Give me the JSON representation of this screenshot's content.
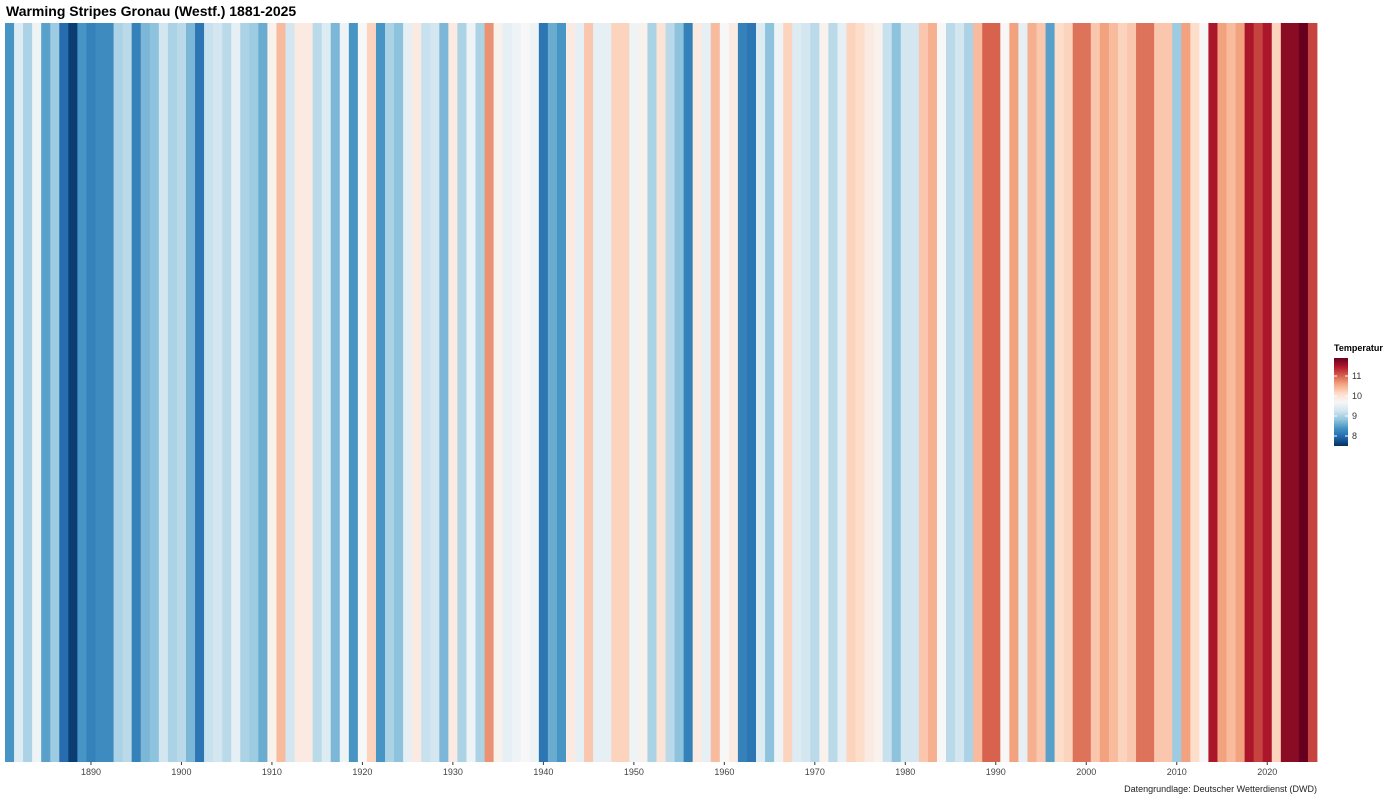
{
  "chart_data": {
    "type": "heatmap",
    "title": "Warming Stripes Gronau (Westf.) 1881-2025",
    "caption": "Datengrundlage: Deutscher Wetterdienst (DWD)",
    "legend_title": "Temperatur",
    "legend_ticks": [
      8,
      9,
      10,
      11
    ],
    "legend_placement": "right",
    "color_scale": "RdBu (blue = cold, red = warm)",
    "color_range": [
      7.5,
      11.9
    ],
    "palette": [
      "#053061",
      "#2166ac",
      "#4393c3",
      "#92c5de",
      "#d1e5f0",
      "#f7f7f7",
      "#fddbc7",
      "#f4a582",
      "#d6604d",
      "#b2182b",
      "#67001f"
    ],
    "x_ticks": [
      1890,
      1900,
      1910,
      1920,
      1930,
      1940,
      1950,
      1960,
      1970,
      1980,
      1990,
      2000,
      2010,
      2020
    ],
    "x_range": [
      1881,
      2025
    ],
    "grid": false,
    "years_start": 1881,
    "values": [
      8.4,
      9.4,
      9.0,
      9.6,
      8.5,
      8.9,
      8.0,
      7.6,
      8.4,
      8.2,
      8.3,
      8.3,
      9.0,
      9.1,
      8.2,
      8.7,
      8.8,
      9.3,
      9.0,
      9.1,
      8.7,
      8.1,
      9.2,
      9.3,
      9.1,
      9.5,
      9.0,
      8.9,
      8.6,
      9.8,
      10.4,
      9.3,
      9.9,
      9.9,
      9.1,
      9.4,
      8.7,
      9.6,
      8.4,
      9.7,
      10.2,
      8.4,
      9.0,
      8.8,
      9.5,
      9.9,
      9.2,
      9.3,
      8.7,
      9.9,
      9.0,
      9.6,
      9.0,
      10.7,
      9.8,
      9.5,
      9.6,
      9.7,
      9.6,
      8.1,
      8.6,
      8.4,
      9.9,
      9.5,
      10.3,
      9.5,
      9.5,
      10.2,
      10.2,
      9.6,
      9.8,
      9.0,
      10.0,
      9.1,
      8.8,
      8.2,
      9.9,
      9.5,
      10.4,
      9.7,
      9.9,
      8.2,
      8.1,
      9.4,
      8.8,
      9.6,
      10.2,
      9.4,
      9.3,
      9.1,
      9.8,
      9.1,
      9.5,
      10.2,
      10.1,
      9.9,
      9.8,
      9.2,
      8.8,
      9.3,
      9.3,
      10.3,
      10.5,
      9.7,
      9.1,
      9.3,
      9.0,
      10.4,
      11.0,
      11.0,
      9.7,
      10.6,
      9.5,
      10.5,
      10.3,
      8.5,
      10.1,
      10.2,
      10.9,
      10.9,
      10.3,
      10.6,
      10.4,
      10.2,
      10.3,
      10.9,
      10.9,
      10.3,
      10.3,
      8.9,
      10.6,
      10.1,
      9.7,
      11.5,
      10.6,
      10.4,
      10.6,
      11.5,
      11.2,
      11.5,
      10.2,
      11.7,
      11.7,
      11.9,
      11.2
    ]
  }
}
